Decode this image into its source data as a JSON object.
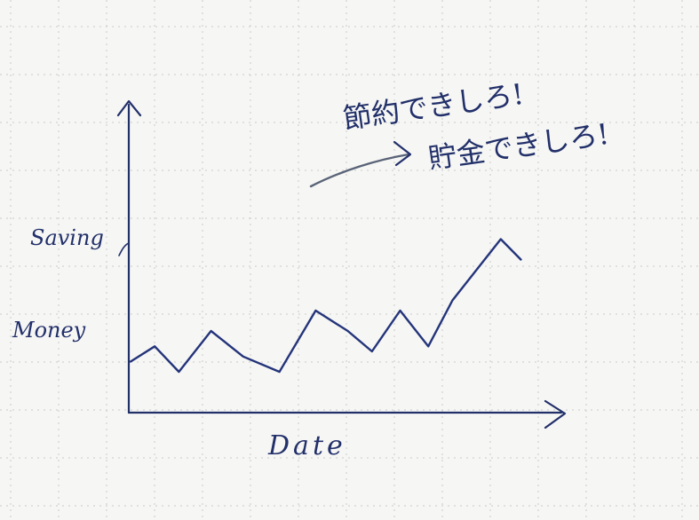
{
  "chart_data": {
    "type": "line",
    "title": "",
    "xlabel": "Date",
    "ylabel_line1": "Saving",
    "ylabel_line2": "Money",
    "annotation_line1": "節約できしろ!",
    "annotation_line2": "貯金できしろ!",
    "series": [
      {
        "values_note": "",
        "points": [
          [
            0,
            10
          ],
          [
            6,
            13
          ],
          [
            12,
            8
          ],
          [
            20,
            16
          ],
          [
            28,
            11
          ],
          [
            37,
            8
          ],
          [
            46,
            20
          ],
          [
            54,
            16
          ],
          [
            60,
            12
          ],
          [
            67,
            20
          ],
          [
            74,
            13
          ],
          [
            80,
            22
          ],
          [
            86,
            28
          ],
          [
            92,
            34
          ],
          [
            97,
            30
          ]
        ]
      }
    ],
    "xlim": [
      0,
      100
    ],
    "ylim": [
      0,
      60
    ],
    "colors": {
      "ink": "#22306a",
      "annotation_arrow": "#5a6478",
      "grid": "#c9c9c9"
    }
  }
}
